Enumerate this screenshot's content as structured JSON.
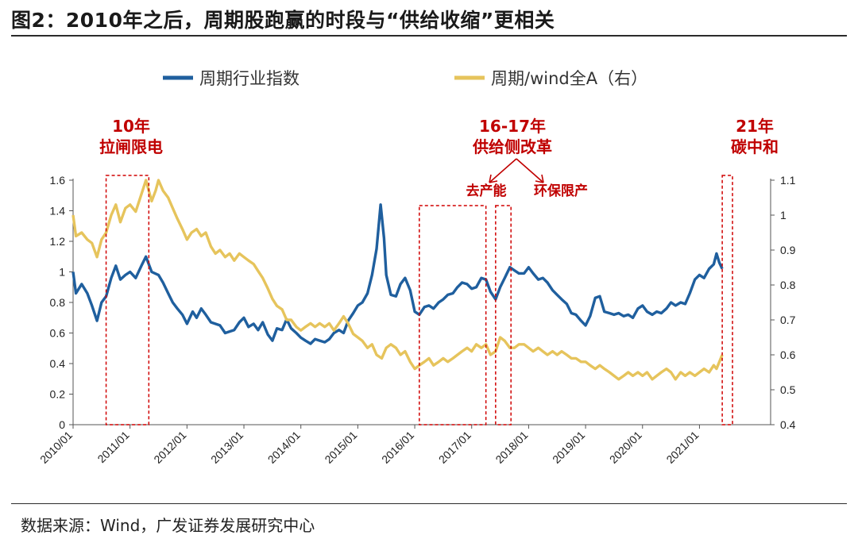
{
  "title": "图2：2010年之后，周期股跑赢的时段与“供给收缩”更相关",
  "source": "数据来源：Wind，广发证券发展研究中心",
  "chart_data": {
    "type": "line",
    "x_ticks": [
      "2010/01",
      "2011/01",
      "2012/01",
      "2013/01",
      "2014/01",
      "2015/01",
      "2016/01",
      "2017/01",
      "2018/01",
      "2019/01",
      "2020/01",
      "2021/01"
    ],
    "y_left": {
      "min": 0,
      "max": 1.6,
      "ticks": [
        "0",
        "0.2",
        "0.4",
        "0.6",
        "0.8",
        "1",
        "1.2",
        "1.4",
        "1.6"
      ]
    },
    "y_right": {
      "min": 0.4,
      "max": 1.1,
      "ticks": [
        "0.4",
        "0.5",
        "0.6",
        "0.7",
        "0.8",
        "0.9",
        "1",
        "1.1"
      ]
    },
    "series": [
      {
        "name": "周期行业指数",
        "axis": "left",
        "color": "#1f5f9e",
        "points": [
          [
            2010.0,
            1.0
          ],
          [
            2010.05,
            0.86
          ],
          [
            2010.15,
            0.92
          ],
          [
            2010.25,
            0.86
          ],
          [
            2010.33,
            0.78
          ],
          [
            2010.42,
            0.68
          ],
          [
            2010.5,
            0.8
          ],
          [
            2010.58,
            0.84
          ],
          [
            2010.67,
            0.96
          ],
          [
            2010.75,
            1.04
          ],
          [
            2010.83,
            0.95
          ],
          [
            2010.92,
            0.98
          ],
          [
            2011.0,
            1.0
          ],
          [
            2011.1,
            0.96
          ],
          [
            2011.2,
            1.04
          ],
          [
            2011.28,
            1.1
          ],
          [
            2011.38,
            1.0
          ],
          [
            2011.5,
            0.98
          ],
          [
            2011.58,
            0.93
          ],
          [
            2011.67,
            0.86
          ],
          [
            2011.75,
            0.8
          ],
          [
            2011.83,
            0.76
          ],
          [
            2011.92,
            0.72
          ],
          [
            2012.0,
            0.66
          ],
          [
            2012.1,
            0.74
          ],
          [
            2012.17,
            0.7
          ],
          [
            2012.25,
            0.76
          ],
          [
            2012.33,
            0.72
          ],
          [
            2012.42,
            0.67
          ],
          [
            2012.58,
            0.65
          ],
          [
            2012.67,
            0.6
          ],
          [
            2012.83,
            0.62
          ],
          [
            2012.92,
            0.67
          ],
          [
            2013.0,
            0.7
          ],
          [
            2013.08,
            0.64
          ],
          [
            2013.17,
            0.66
          ],
          [
            2013.25,
            0.62
          ],
          [
            2013.33,
            0.67
          ],
          [
            2013.42,
            0.59
          ],
          [
            2013.5,
            0.55
          ],
          [
            2013.58,
            0.63
          ],
          [
            2013.67,
            0.62
          ],
          [
            2013.75,
            0.69
          ],
          [
            2013.83,
            0.63
          ],
          [
            2013.92,
            0.6
          ],
          [
            2014.0,
            0.57
          ],
          [
            2014.08,
            0.55
          ],
          [
            2014.17,
            0.53
          ],
          [
            2014.25,
            0.56
          ],
          [
            2014.33,
            0.55
          ],
          [
            2014.42,
            0.54
          ],
          [
            2014.5,
            0.56
          ],
          [
            2014.58,
            0.6
          ],
          [
            2014.67,
            0.62
          ],
          [
            2014.75,
            0.6
          ],
          [
            2014.83,
            0.68
          ],
          [
            2014.92,
            0.73
          ],
          [
            2015.0,
            0.78
          ],
          [
            2015.08,
            0.8
          ],
          [
            2015.17,
            0.86
          ],
          [
            2015.25,
            0.98
          ],
          [
            2015.33,
            1.15
          ],
          [
            2015.4,
            1.44
          ],
          [
            2015.46,
            1.22
          ],
          [
            2015.5,
            0.98
          ],
          [
            2015.58,
            0.85
          ],
          [
            2015.67,
            0.84
          ],
          [
            2015.75,
            0.92
          ],
          [
            2015.83,
            0.96
          ],
          [
            2015.92,
            0.88
          ],
          [
            2016.0,
            0.74
          ],
          [
            2016.08,
            0.72
          ],
          [
            2016.17,
            0.77
          ],
          [
            2016.25,
            0.78
          ],
          [
            2016.33,
            0.76
          ],
          [
            2016.42,
            0.8
          ],
          [
            2016.5,
            0.82
          ],
          [
            2016.58,
            0.85
          ],
          [
            2016.67,
            0.86
          ],
          [
            2016.75,
            0.9
          ],
          [
            2016.83,
            0.93
          ],
          [
            2016.92,
            0.92
          ],
          [
            2017.0,
            0.89
          ],
          [
            2017.08,
            0.9
          ],
          [
            2017.17,
            0.96
          ],
          [
            2017.25,
            0.95
          ],
          [
            2017.33,
            0.87
          ],
          [
            2017.42,
            0.82
          ],
          [
            2017.5,
            0.9
          ],
          [
            2017.58,
            0.96
          ],
          [
            2017.67,
            1.03
          ],
          [
            2017.75,
            1.01
          ],
          [
            2017.83,
            0.99
          ],
          [
            2017.92,
            0.99
          ],
          [
            2018.0,
            1.03
          ],
          [
            2018.08,
            0.99
          ],
          [
            2018.17,
            0.95
          ],
          [
            2018.25,
            0.96
          ],
          [
            2018.33,
            0.93
          ],
          [
            2018.42,
            0.88
          ],
          [
            2018.5,
            0.85
          ],
          [
            2018.58,
            0.82
          ],
          [
            2018.67,
            0.79
          ],
          [
            2018.75,
            0.73
          ],
          [
            2018.83,
            0.72
          ],
          [
            2018.92,
            0.68
          ],
          [
            2019.0,
            0.65
          ],
          [
            2019.08,
            0.71
          ],
          [
            2019.17,
            0.83
          ],
          [
            2019.25,
            0.84
          ],
          [
            2019.33,
            0.74
          ],
          [
            2019.42,
            0.73
          ],
          [
            2019.5,
            0.72
          ],
          [
            2019.58,
            0.73
          ],
          [
            2019.67,
            0.71
          ],
          [
            2019.75,
            0.72
          ],
          [
            2019.83,
            0.7
          ],
          [
            2019.92,
            0.76
          ],
          [
            2020.0,
            0.78
          ],
          [
            2020.08,
            0.74
          ],
          [
            2020.17,
            0.72
          ],
          [
            2020.25,
            0.74
          ],
          [
            2020.33,
            0.73
          ],
          [
            2020.42,
            0.76
          ],
          [
            2020.5,
            0.8
          ],
          [
            2020.58,
            0.78
          ],
          [
            2020.67,
            0.8
          ],
          [
            2020.75,
            0.79
          ],
          [
            2020.83,
            0.86
          ],
          [
            2020.92,
            0.95
          ],
          [
            2021.0,
            0.98
          ],
          [
            2021.08,
            0.96
          ],
          [
            2021.17,
            1.02
          ],
          [
            2021.25,
            1.05
          ],
          [
            2021.3,
            1.12
          ],
          [
            2021.35,
            1.06
          ],
          [
            2021.4,
            1.02
          ]
        ]
      },
      {
        "name": "周期/wind全A（右）",
        "axis": "right",
        "color": "#e6c45c",
        "points": [
          [
            2010.0,
            1.0
          ],
          [
            2010.05,
            0.94
          ],
          [
            2010.15,
            0.95
          ],
          [
            2010.25,
            0.93
          ],
          [
            2010.33,
            0.92
          ],
          [
            2010.42,
            0.88
          ],
          [
            2010.5,
            0.93
          ],
          [
            2010.58,
            0.95
          ],
          [
            2010.67,
            1.0
          ],
          [
            2010.75,
            1.03
          ],
          [
            2010.83,
            0.98
          ],
          [
            2010.92,
            1.02
          ],
          [
            2011.0,
            1.03
          ],
          [
            2011.1,
            1.01
          ],
          [
            2011.2,
            1.06
          ],
          [
            2011.28,
            1.1
          ],
          [
            2011.38,
            1.04
          ],
          [
            2011.45,
            1.07
          ],
          [
            2011.5,
            1.1
          ],
          [
            2011.58,
            1.07
          ],
          [
            2011.67,
            1.05
          ],
          [
            2011.75,
            1.02
          ],
          [
            2011.83,
            0.99
          ],
          [
            2011.92,
            0.96
          ],
          [
            2012.0,
            0.93
          ],
          [
            2012.08,
            0.95
          ],
          [
            2012.17,
            0.96
          ],
          [
            2012.25,
            0.94
          ],
          [
            2012.33,
            0.95
          ],
          [
            2012.42,
            0.91
          ],
          [
            2012.5,
            0.89
          ],
          [
            2012.58,
            0.9
          ],
          [
            2012.67,
            0.88
          ],
          [
            2012.75,
            0.89
          ],
          [
            2012.83,
            0.87
          ],
          [
            2012.92,
            0.89
          ],
          [
            2013.0,
            0.88
          ],
          [
            2013.08,
            0.87
          ],
          [
            2013.17,
            0.86
          ],
          [
            2013.25,
            0.84
          ],
          [
            2013.33,
            0.82
          ],
          [
            2013.42,
            0.79
          ],
          [
            2013.5,
            0.76
          ],
          [
            2013.58,
            0.74
          ],
          [
            2013.67,
            0.73
          ],
          [
            2013.75,
            0.7
          ],
          [
            2013.83,
            0.7
          ],
          [
            2013.92,
            0.68
          ],
          [
            2014.0,
            0.67
          ],
          [
            2014.08,
            0.68
          ],
          [
            2014.17,
            0.69
          ],
          [
            2014.25,
            0.68
          ],
          [
            2014.33,
            0.69
          ],
          [
            2014.42,
            0.68
          ],
          [
            2014.5,
            0.69
          ],
          [
            2014.58,
            0.67
          ],
          [
            2014.67,
            0.69
          ],
          [
            2014.75,
            0.71
          ],
          [
            2014.83,
            0.69
          ],
          [
            2014.92,
            0.66
          ],
          [
            2015.0,
            0.65
          ],
          [
            2015.08,
            0.64
          ],
          [
            2015.17,
            0.62
          ],
          [
            2015.25,
            0.63
          ],
          [
            2015.33,
            0.6
          ],
          [
            2015.42,
            0.59
          ],
          [
            2015.5,
            0.62
          ],
          [
            2015.58,
            0.63
          ],
          [
            2015.67,
            0.62
          ],
          [
            2015.75,
            0.6
          ],
          [
            2015.83,
            0.61
          ],
          [
            2015.92,
            0.58
          ],
          [
            2016.0,
            0.56
          ],
          [
            2016.08,
            0.57
          ],
          [
            2016.17,
            0.58
          ],
          [
            2016.25,
            0.59
          ],
          [
            2016.33,
            0.57
          ],
          [
            2016.42,
            0.58
          ],
          [
            2016.5,
            0.59
          ],
          [
            2016.58,
            0.58
          ],
          [
            2016.67,
            0.59
          ],
          [
            2016.75,
            0.6
          ],
          [
            2016.83,
            0.61
          ],
          [
            2016.92,
            0.62
          ],
          [
            2017.0,
            0.61
          ],
          [
            2017.08,
            0.63
          ],
          [
            2017.17,
            0.62
          ],
          [
            2017.25,
            0.63
          ],
          [
            2017.33,
            0.6
          ],
          [
            2017.42,
            0.61
          ],
          [
            2017.5,
            0.65
          ],
          [
            2017.58,
            0.64
          ],
          [
            2017.67,
            0.62
          ],
          [
            2017.75,
            0.62
          ],
          [
            2017.83,
            0.63
          ],
          [
            2017.92,
            0.63
          ],
          [
            2018.0,
            0.62
          ],
          [
            2018.08,
            0.61
          ],
          [
            2018.17,
            0.62
          ],
          [
            2018.25,
            0.61
          ],
          [
            2018.33,
            0.6
          ],
          [
            2018.42,
            0.61
          ],
          [
            2018.5,
            0.6
          ],
          [
            2018.58,
            0.61
          ],
          [
            2018.67,
            0.6
          ],
          [
            2018.75,
            0.59
          ],
          [
            2018.83,
            0.59
          ],
          [
            2018.92,
            0.58
          ],
          [
            2019.0,
            0.58
          ],
          [
            2019.08,
            0.57
          ],
          [
            2019.17,
            0.56
          ],
          [
            2019.25,
            0.57
          ],
          [
            2019.33,
            0.56
          ],
          [
            2019.42,
            0.55
          ],
          [
            2019.5,
            0.54
          ],
          [
            2019.58,
            0.53
          ],
          [
            2019.67,
            0.54
          ],
          [
            2019.75,
            0.55
          ],
          [
            2019.83,
            0.54
          ],
          [
            2019.92,
            0.55
          ],
          [
            2020.0,
            0.54
          ],
          [
            2020.08,
            0.55
          ],
          [
            2020.17,
            0.53
          ],
          [
            2020.25,
            0.54
          ],
          [
            2020.33,
            0.55
          ],
          [
            2020.42,
            0.56
          ],
          [
            2020.5,
            0.55
          ],
          [
            2020.58,
            0.53
          ],
          [
            2020.67,
            0.55
          ],
          [
            2020.75,
            0.54
          ],
          [
            2020.83,
            0.55
          ],
          [
            2020.92,
            0.54
          ],
          [
            2021.0,
            0.55
          ],
          [
            2021.08,
            0.56
          ],
          [
            2021.17,
            0.55
          ],
          [
            2021.25,
            0.57
          ],
          [
            2021.3,
            0.56
          ],
          [
            2021.35,
            0.58
          ],
          [
            2021.4,
            0.6
          ]
        ]
      }
    ],
    "annotations": [
      {
        "lines": [
          "10年",
          "拉闸限电"
        ],
        "x_start": 2010.58,
        "x_end": 2011.33
      },
      {
        "lines": [
          "16-17年",
          "供给侧改革"
        ],
        "subs": [
          {
            "label": "去产能",
            "x_start": 2016.08,
            "x_end": 2017.25
          },
          {
            "label": "环保限产",
            "x_start": 2017.42,
            "x_end": 2017.69
          }
        ]
      },
      {
        "lines": [
          "21年",
          "碳中和"
        ],
        "x_start": 2021.4,
        "x_end": 2021.58
      }
    ]
  }
}
